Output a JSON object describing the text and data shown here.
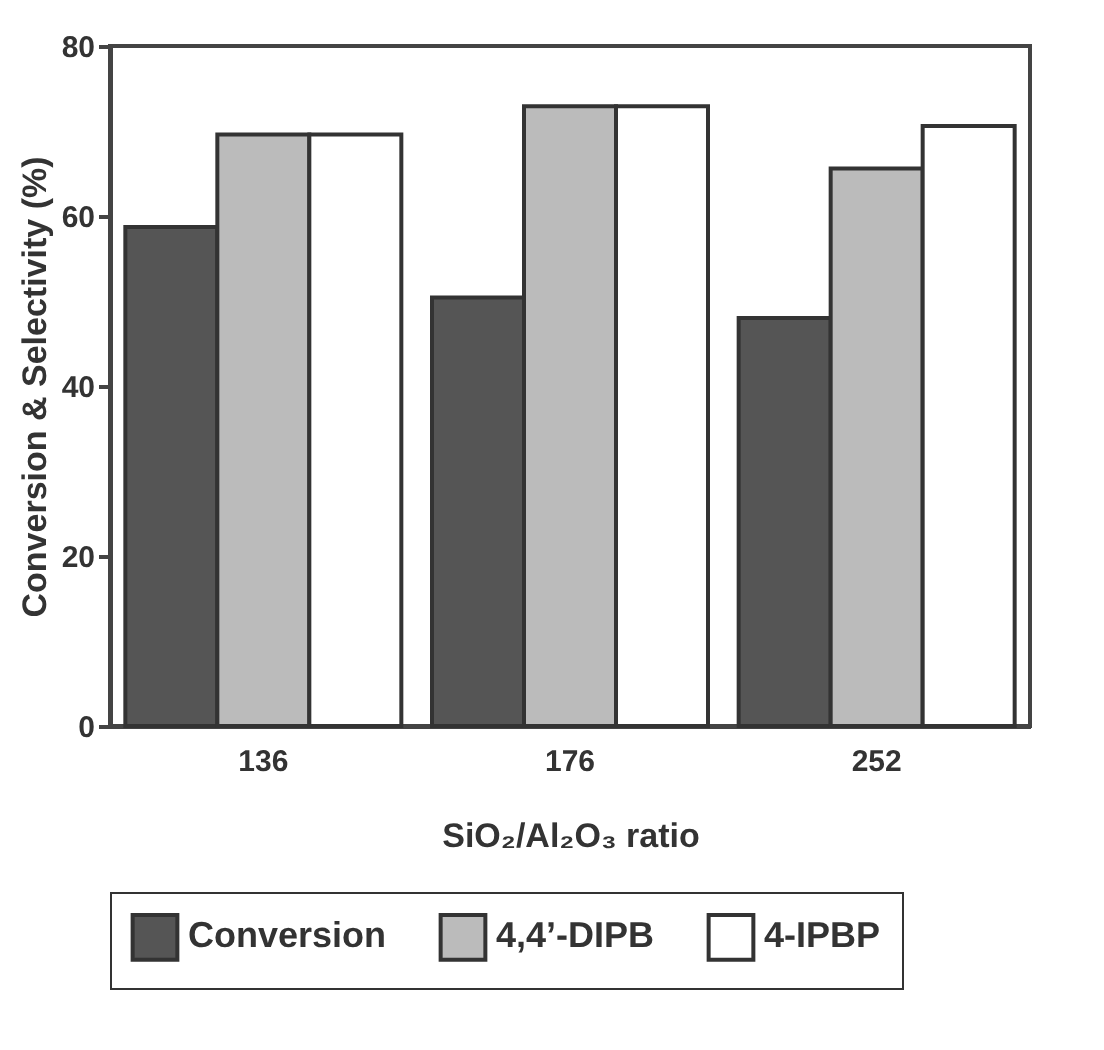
{
  "chart_data": {
    "type": "bar",
    "xlabel": "SiO₂/Al₂O₃ ratio",
    "ylabel": "Conversion & Selectivity (%)",
    "categories": [
      "136",
      "176",
      "252"
    ],
    "series": [
      {
        "name": "Conversion",
        "color": "#555555",
        "values": [
          58.7,
          50.4,
          48.0
        ]
      },
      {
        "name": "4,4’-DIPB",
        "color": "#bbbbbb",
        "values": [
          69.6,
          72.9,
          65.6
        ]
      },
      {
        "name": "4-IPBP",
        "color": "#ffffff",
        "values": [
          69.6,
          72.9,
          70.6
        ]
      }
    ],
    "ylim": [
      0,
      80
    ],
    "yticks": [
      0,
      20,
      40,
      60,
      80
    ],
    "grid": false,
    "legend": "bottom"
  }
}
